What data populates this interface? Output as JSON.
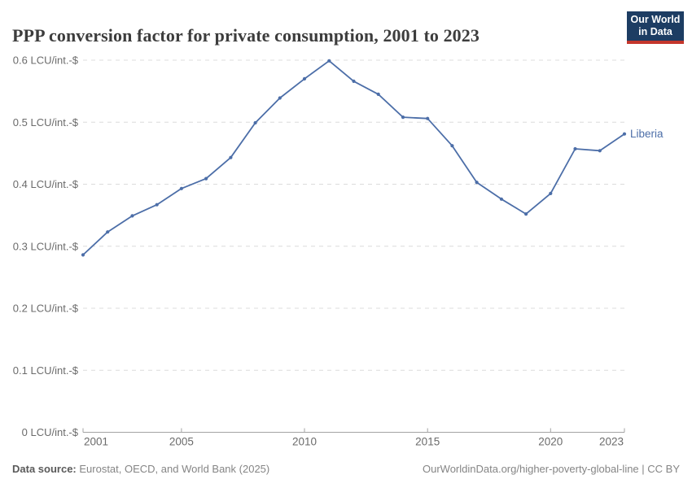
{
  "header": {
    "title": "PPP conversion factor for private consumption, 2001 to 2023",
    "logo": {
      "line1": "Our World",
      "line2": "in Data"
    }
  },
  "chart_data": {
    "type": "line",
    "title": "PPP conversion factor for private consumption, 2001 to 2023",
    "x": [
      2001,
      2002,
      2003,
      2004,
      2005,
      2006,
      2007,
      2008,
      2009,
      2010,
      2011,
      2012,
      2013,
      2014,
      2015,
      2016,
      2017,
      2018,
      2019,
      2020,
      2021,
      2022,
      2023
    ],
    "series": [
      {
        "name": "Liberia",
        "color": "#4C6EA8",
        "values": [
          0.286,
          0.323,
          0.349,
          0.367,
          0.393,
          0.409,
          0.443,
          0.499,
          0.539,
          0.57,
          0.599,
          0.566,
          0.545,
          0.508,
          0.506,
          0.462,
          0.403,
          0.376,
          0.352,
          0.385,
          0.457,
          0.454,
          0.481
        ]
      }
    ],
    "unit": "LCU/int.-$",
    "ylim": [
      0,
      0.6
    ],
    "yticks": [
      0,
      0.1,
      0.2,
      0.3,
      0.4,
      0.5,
      0.6
    ],
    "ytick_labels": [
      "0 LCU/int.-$",
      "0.1 LCU/int.-$",
      "0.2 LCU/int.-$",
      "0.3 LCU/int.-$",
      "0.4 LCU/int.-$",
      "0.5 LCU/int.-$",
      "0.6 LCU/int.-$"
    ],
    "xticks": [
      2001,
      2005,
      2010,
      2015,
      2020,
      2023
    ],
    "xtick_labels": [
      "2001",
      "2005",
      "2010",
      "2015",
      "2020",
      "2023"
    ],
    "grid": "horizontal-dashed",
    "legend_position": "end-of-line"
  },
  "colors": {
    "line": "#4C6EA8",
    "grid": "#dcdcdc",
    "axis": "#a3a3a3",
    "tick_text": "#6b6b6b",
    "title": "#3d3d3d"
  },
  "footer": {
    "source_label": "Data source:",
    "source_text": " Eurostat, OECD, and World Bank (2025)",
    "credit": "OurWorldinData.org/higher-poverty-global-line | CC BY"
  }
}
